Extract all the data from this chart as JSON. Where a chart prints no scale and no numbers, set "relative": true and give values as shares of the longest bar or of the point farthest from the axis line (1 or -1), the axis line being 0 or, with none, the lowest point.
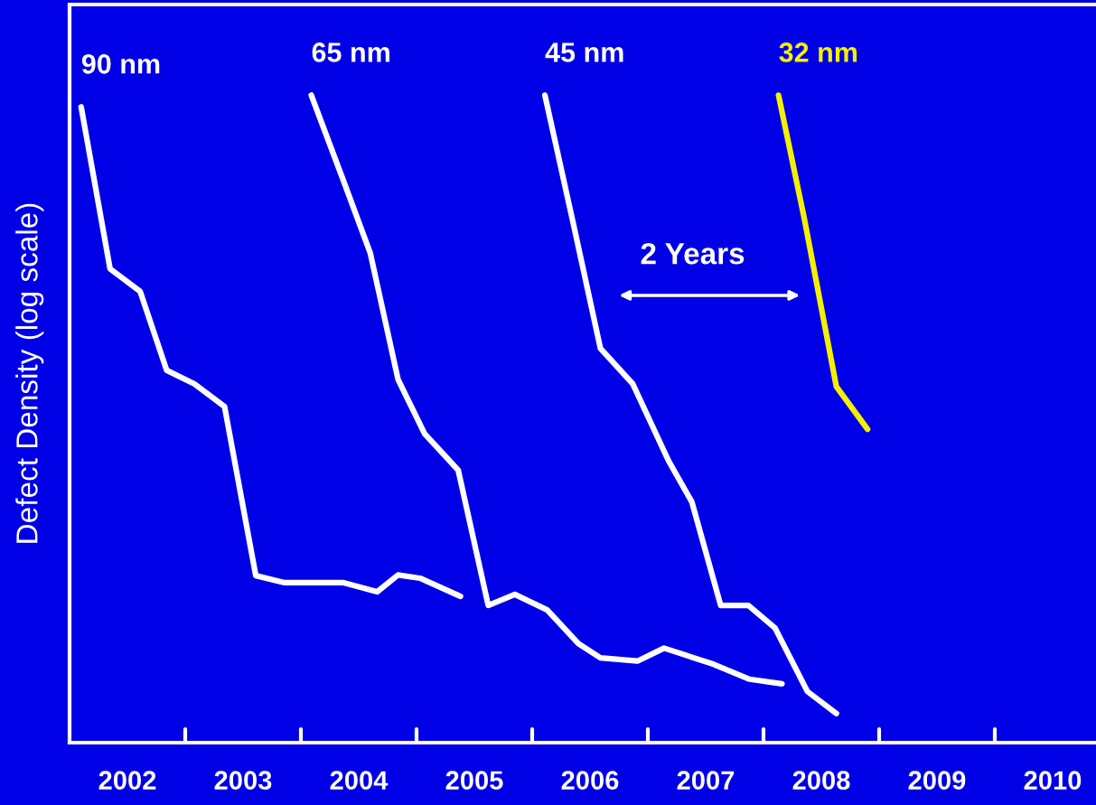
{
  "chart_data": {
    "type": "line",
    "relative": true,
    "ylabel": "Defect Density (log scale)",
    "xlim": [
      2002,
      2010.875
    ],
    "xticks": [
      {
        "value": 2002.5,
        "label": "2002"
      },
      {
        "value": 2003.5,
        "label": "2003"
      },
      {
        "value": 2004.5,
        "label": "2004"
      },
      {
        "value": 2005.5,
        "label": "2005"
      },
      {
        "value": 2006.5,
        "label": "2006"
      },
      {
        "value": 2007.5,
        "label": "2007"
      },
      {
        "value": 2008.5,
        "label": "2008"
      },
      {
        "value": 2009.5,
        "label": "2009"
      },
      {
        "value": 2010.5,
        "label": "2010"
      },
      {
        "value": 2003,
        "label": null
      },
      {
        "value": 2004,
        "label": null
      },
      {
        "value": 2005,
        "label": null
      },
      {
        "value": 2006,
        "label": null
      },
      {
        "value": 2007,
        "label": null
      },
      {
        "value": 2008,
        "label": null
      },
      {
        "value": 2009,
        "label": null
      },
      {
        "value": 2010,
        "label": null
      }
    ],
    "series": [
      {
        "name": "90 nm",
        "color": "#ffffff",
        "x": [
          2002.1,
          2002.35,
          2002.61,
          2002.84,
          2003.08,
          2003.34,
          2003.61,
          2003.86,
          2004.37,
          2004.66,
          2004.84,
          2005.03,
          2005.38
        ],
        "values": [
          0.982,
          0.732,
          0.697,
          0.575,
          0.554,
          0.519,
          0.258,
          0.247,
          0.247,
          0.233,
          0.259,
          0.254,
          0.226
        ]
      },
      {
        "name": "65 nm",
        "color": "#ffffff",
        "x": [
          2004.09,
          2004.37,
          2004.6,
          2004.84,
          2005.07,
          2005.36,
          2005.62,
          2005.85,
          2006.13,
          2006.4,
          2006.59,
          2006.91,
          2007.14,
          2007.57,
          2007.88,
          2008.16
        ],
        "values": [
          1.0,
          0.867,
          0.756,
          0.561,
          0.477,
          0.421,
          0.212,
          0.229,
          0.205,
          0.153,
          0.131,
          0.126,
          0.146,
          0.121,
          0.098,
          0.091
        ]
      },
      {
        "name": "45 nm",
        "color": "#ffffff",
        "x": [
          2006.11,
          2006.36,
          2006.59,
          2006.87,
          2007.18,
          2007.38,
          2007.63,
          2007.87,
          2008.1,
          2008.38,
          2008.63
        ],
        "values": [
          1.0,
          0.798,
          0.609,
          0.554,
          0.435,
          0.372,
          0.212,
          0.212,
          0.177,
          0.079,
          0.045
        ]
      },
      {
        "name": "32 nm",
        "color": "#f5f000",
        "x": [
          2008.13,
          2008.35,
          2008.63,
          2008.9
        ],
        "values": [
          1.0,
          0.812,
          0.55,
          0.484
        ]
      }
    ],
    "annotations": [
      "2 Years"
    ],
    "grid": false,
    "legend": false
  }
}
